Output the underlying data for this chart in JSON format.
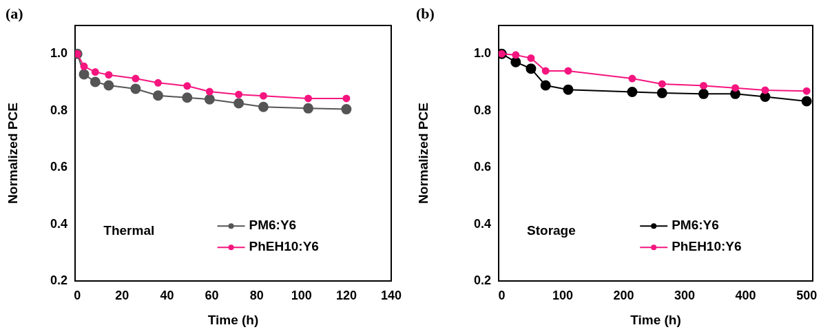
{
  "chart_data": [
    {
      "type": "line",
      "title": "(a)",
      "xlabel": "Time (h)",
      "ylabel": "Normalized PCE",
      "annotations": [
        "Thermal"
      ],
      "legend": "bottom right",
      "marker": "circle",
      "grid": false,
      "xlim": [
        -1,
        140
      ],
      "xticks": [
        0,
        20,
        40,
        60,
        80,
        100,
        120,
        140
      ],
      "ylim": [
        0.2,
        1.1
      ],
      "yticks": [
        0.2,
        0.4,
        0.6,
        0.8,
        {
          "value": 1,
          "label": "1.0"
        }
      ],
      "series": [
        {
          "name": "PM6:Y6",
          "color": "#555555",
          "x": [
            0,
            3,
            8,
            14,
            26,
            36,
            49,
            59,
            72,
            83,
            103,
            120
          ],
          "values": [
            1.0,
            0.928,
            0.901,
            0.889,
            0.877,
            0.853,
            0.846,
            0.84,
            0.826,
            0.813,
            0.808,
            0.805
          ]
        },
        {
          "name": "PhEH10:Y6",
          "color": "#f5157f",
          "x": [
            0,
            3,
            8,
            14,
            26,
            36,
            49,
            59,
            72,
            83,
            103,
            120
          ],
          "values": [
            1.0,
            0.956,
            0.936,
            0.926,
            0.913,
            0.898,
            0.887,
            0.867,
            0.857,
            0.852,
            0.843,
            0.843
          ]
        }
      ]
    },
    {
      "type": "line",
      "title": "(b)",
      "xlabel": "Time (h)",
      "ylabel": "Normalized PCE",
      "annotations": [
        "Storage"
      ],
      "legend": "bottom right",
      "marker": "circle",
      "grid": false,
      "xlim": [
        -5,
        510
      ],
      "xticks": [
        0,
        100,
        200,
        300,
        400,
        500
      ],
      "ylim": [
        0.2,
        1.1
      ],
      "yticks": [
        0.2,
        0.4,
        0.6,
        0.8,
        {
          "value": 1,
          "label": "1.0"
        }
      ],
      "series": [
        {
          "name": "PM6:Y6",
          "color": "#000000",
          "x": [
            0,
            23,
            48,
            72,
            109,
            214,
            263,
            331,
            383,
            432,
            500
          ],
          "values": [
            1.0,
            0.971,
            0.948,
            0.889,
            0.874,
            0.866,
            0.862,
            0.859,
            0.859,
            0.849,
            0.833
          ]
        },
        {
          "name": "PhEH10:Y6",
          "color": "#f5157f",
          "x": [
            0,
            23,
            48,
            72,
            109,
            214,
            263,
            331,
            383,
            432,
            500
          ],
          "values": [
            1.0,
            0.996,
            0.985,
            0.94,
            0.94,
            0.913,
            0.894,
            0.888,
            0.88,
            0.872,
            0.869
          ]
        }
      ]
    }
  ]
}
